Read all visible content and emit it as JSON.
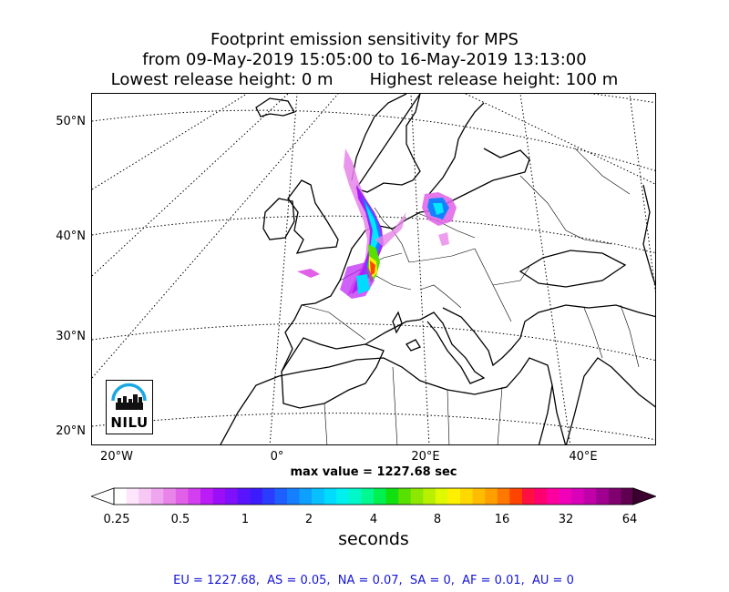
{
  "title": {
    "line1": "Footprint emission sensitivity for MPS",
    "line2": "from 09-May-2019 15:05:00 to 16-May-2019 13:13:00",
    "line3": "Lowest release height: 0 m       Highest release height: 100 m"
  },
  "map": {
    "lat_labels": [
      "50°N",
      "40°N",
      "30°N",
      "20°N"
    ],
    "lon_labels": [
      "20°W",
      "0°",
      "20°E",
      "40°E"
    ],
    "max_value_text": "max value = 1227.68 sec",
    "logo_text": "NILU"
  },
  "colorbar": {
    "tick_labels": [
      "0.25",
      "0.5",
      "1",
      "2",
      "4",
      "8",
      "16",
      "32",
      "64"
    ],
    "units": "seconds",
    "colors": [
      "#ffffff",
      "#fde6fb",
      "#f8c8f5",
      "#f0a6ef",
      "#e884ea",
      "#e060e8",
      "#d23ef0",
      "#bb1cf5",
      "#9c0ef8",
      "#7e10fb",
      "#5a14fd",
      "#3c1cff",
      "#2a3cff",
      "#1e60ff",
      "#1480ff",
      "#0ea0ff",
      "#08c0ff",
      "#00dcff",
      "#00f0f0",
      "#00f8c8",
      "#00f890",
      "#00f050",
      "#10e010",
      "#58e000",
      "#8ce800",
      "#b8f000",
      "#e0f800",
      "#fff000",
      "#ffd800",
      "#ffbc00",
      "#ffa000",
      "#ff7800",
      "#ff4400",
      "#ff1040",
      "#ff0070",
      "#ff00a0",
      "#f000b8",
      "#d800b8",
      "#c000a8",
      "#a00090",
      "#800070",
      "#600050"
    ]
  },
  "stats": "EU = 1227.68,  AS = 0.05,  NA = 0.07,  SA = 0,  AF = 0.01,  AU = 0"
}
